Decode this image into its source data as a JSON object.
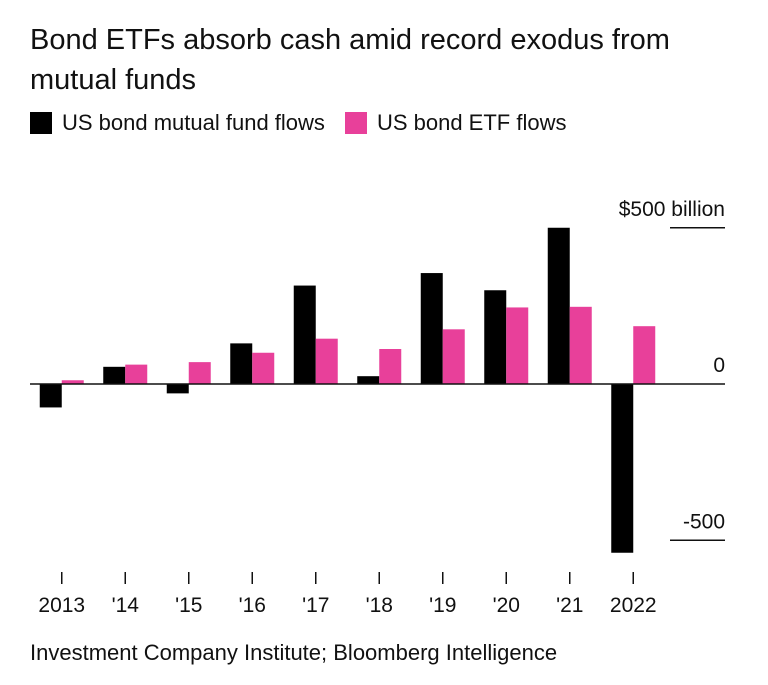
{
  "title": "Bond ETFs absorb cash amid record exodus from mutual funds",
  "source": "Investment Company Institute; Bloomberg Intelligence",
  "colors": {
    "mutual": "#000000",
    "etf": "#e8409a"
  },
  "chart_data": {
    "type": "bar",
    "categories": [
      "2013",
      "'14",
      "'15",
      "'16",
      "'17",
      "'18",
      "'19",
      "'20",
      "'21",
      "2022"
    ],
    "series": [
      {
        "name": "US bond mutual fund flows",
        "values": [
          -75,
          55,
          -30,
          130,
          315,
          25,
          355,
          300,
          500,
          -540
        ]
      },
      {
        "name": "US bond ETF flows",
        "values": [
          12,
          62,
          70,
          100,
          145,
          112,
          175,
          245,
          247,
          185
        ]
      }
    ],
    "y_ticks": [
      {
        "value": 500,
        "label": "$500 billion"
      },
      {
        "value": 0,
        "label": "0"
      },
      {
        "value": -500,
        "label": "-500"
      }
    ],
    "ylim": [
      -610,
      620
    ],
    "grid": false,
    "legend_position": "top-left"
  }
}
